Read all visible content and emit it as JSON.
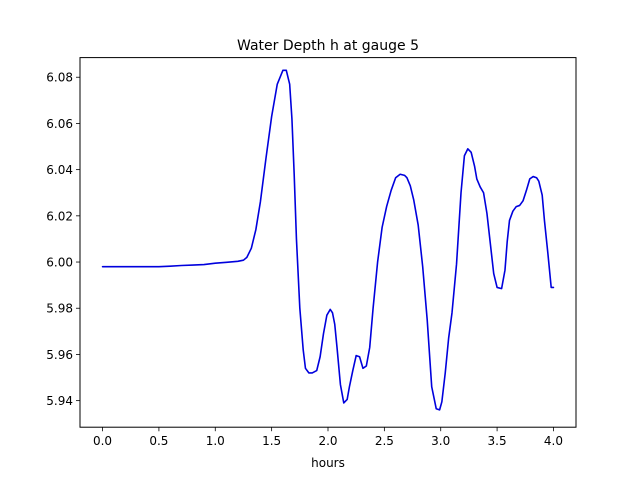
{
  "chart_data": {
    "type": "line",
    "title": "Water Depth h at gauge 5",
    "xlabel": "hours",
    "ylabel": "",
    "xlim": [
      -0.2,
      4.2
    ],
    "ylim": [
      5.9285,
      6.0885
    ],
    "xticks": [
      "0.0",
      "0.5",
      "1.0",
      "1.5",
      "2.0",
      "2.5",
      "3.0",
      "3.5",
      "4.0"
    ],
    "yticks": [
      "5.94",
      "5.96",
      "5.98",
      "6.00",
      "6.02",
      "6.04",
      "6.06",
      "6.08"
    ],
    "grid": false,
    "legend": "none",
    "series": [
      {
        "color": "#0000dd",
        "x": [
          0.0,
          0.2,
          0.4,
          0.5,
          0.6,
          0.7,
          0.8,
          0.9,
          1.0,
          1.1,
          1.2,
          1.25,
          1.28,
          1.32,
          1.36,
          1.4,
          1.45,
          1.5,
          1.55,
          1.6,
          1.63,
          1.66,
          1.68,
          1.7,
          1.72,
          1.75,
          1.78,
          1.8,
          1.83,
          1.86,
          1.9,
          1.93,
          1.96,
          1.99,
          2.02,
          2.04,
          2.06,
          2.08,
          2.11,
          2.14,
          2.17,
          2.19,
          2.22,
          2.25,
          2.28,
          2.31,
          2.34,
          2.37,
          2.4,
          2.44,
          2.48,
          2.52,
          2.56,
          2.6,
          2.64,
          2.68,
          2.7,
          2.73,
          2.76,
          2.8,
          2.84,
          2.88,
          2.92,
          2.96,
          2.99,
          3.01,
          3.04,
          3.07,
          3.1,
          3.14,
          3.18,
          3.21,
          3.24,
          3.27,
          3.3,
          3.32,
          3.35,
          3.38,
          3.41,
          3.44,
          3.47,
          3.5,
          3.54,
          3.57,
          3.59,
          3.61,
          3.64,
          3.67,
          3.7,
          3.73,
          3.76,
          3.79,
          3.82,
          3.85,
          3.87,
          3.9,
          3.92,
          3.95,
          3.98,
          4.0
        ],
        "y": [
          5.998,
          5.998,
          5.998,
          5.998,
          5.9982,
          5.9985,
          5.9987,
          5.9989,
          5.9995,
          5.9999,
          6.0003,
          6.0008,
          6.002,
          6.006,
          6.014,
          6.026,
          6.045,
          6.063,
          6.077,
          6.083,
          6.083,
          6.077,
          6.062,
          6.038,
          6.01,
          5.98,
          5.962,
          5.954,
          5.952,
          5.952,
          5.953,
          5.959,
          5.969,
          5.977,
          5.9795,
          5.978,
          5.973,
          5.963,
          5.947,
          5.939,
          5.9405,
          5.946,
          5.953,
          5.9595,
          5.959,
          5.954,
          5.955,
          5.963,
          5.98,
          6.0,
          6.015,
          6.024,
          6.031,
          6.0365,
          6.038,
          6.0375,
          6.0365,
          6.033,
          6.027,
          6.016,
          5.998,
          5.975,
          5.946,
          5.9365,
          5.936,
          5.9395,
          5.952,
          5.967,
          5.978,
          5.999,
          6.03,
          6.046,
          6.049,
          6.0475,
          6.0415,
          6.036,
          6.0325,
          6.03,
          6.021,
          6.008,
          5.995,
          5.989,
          5.9885,
          5.9965,
          6.009,
          6.018,
          6.022,
          6.024,
          6.0245,
          6.0265,
          6.031,
          6.036,
          6.037,
          6.0365,
          6.035,
          6.029,
          6.018,
          6.004,
          5.989,
          5.989
        ]
      }
    ]
  }
}
